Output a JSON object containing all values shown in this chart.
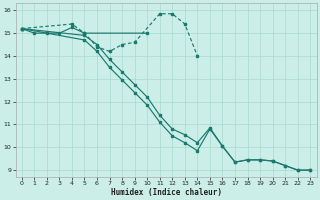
{
  "xlabel": "Humidex (Indice chaleur)",
  "bg_color": "#cceee8",
  "grid_color": "#aad8d2",
  "line_color": "#1a7a6e",
  "xlim": [
    -0.5,
    23.5
  ],
  "ylim": [
    8.7,
    16.3
  ],
  "yticks": [
    9,
    10,
    11,
    12,
    13,
    14,
    15,
    16
  ],
  "xticks": [
    0,
    1,
    2,
    3,
    4,
    5,
    6,
    7,
    8,
    9,
    10,
    11,
    12,
    13,
    14,
    15,
    16,
    17,
    18,
    19,
    20,
    21,
    22,
    23
  ],
  "line1_x": [
    0,
    1,
    2,
    3,
    4,
    5,
    10
  ],
  "line1_y": [
    15.2,
    15.0,
    15.0,
    15.0,
    15.25,
    15.0,
    15.0
  ],
  "line2_x": [
    0,
    4,
    5,
    6,
    7,
    8,
    9,
    11,
    12,
    13,
    14
  ],
  "line2_y": [
    15.2,
    15.4,
    15.0,
    14.4,
    14.2,
    14.5,
    14.6,
    15.85,
    15.85,
    15.4,
    14.0
  ],
  "line3_x": [
    0,
    5,
    6,
    7,
    8,
    9,
    10,
    11,
    12,
    13,
    14,
    15,
    16,
    17,
    18,
    19,
    20,
    21,
    22,
    23
  ],
  "line3_y": [
    15.2,
    14.9,
    14.5,
    13.85,
    13.3,
    12.75,
    12.2,
    11.4,
    10.8,
    10.55,
    10.2,
    10.85,
    10.05,
    9.35,
    9.45,
    9.45,
    9.4,
    9.2,
    9.0,
    9.0
  ],
  "line4_x": [
    0,
    5,
    6,
    7,
    8,
    9,
    10,
    11,
    12,
    13,
    14,
    15,
    16,
    17,
    18,
    19,
    20,
    21,
    22,
    23
  ],
  "line4_y": [
    15.2,
    14.7,
    14.2,
    13.5,
    12.95,
    12.4,
    11.85,
    11.1,
    10.5,
    10.2,
    9.85,
    10.8,
    10.05,
    9.35,
    9.45,
    9.45,
    9.4,
    9.2,
    9.0,
    9.0
  ]
}
